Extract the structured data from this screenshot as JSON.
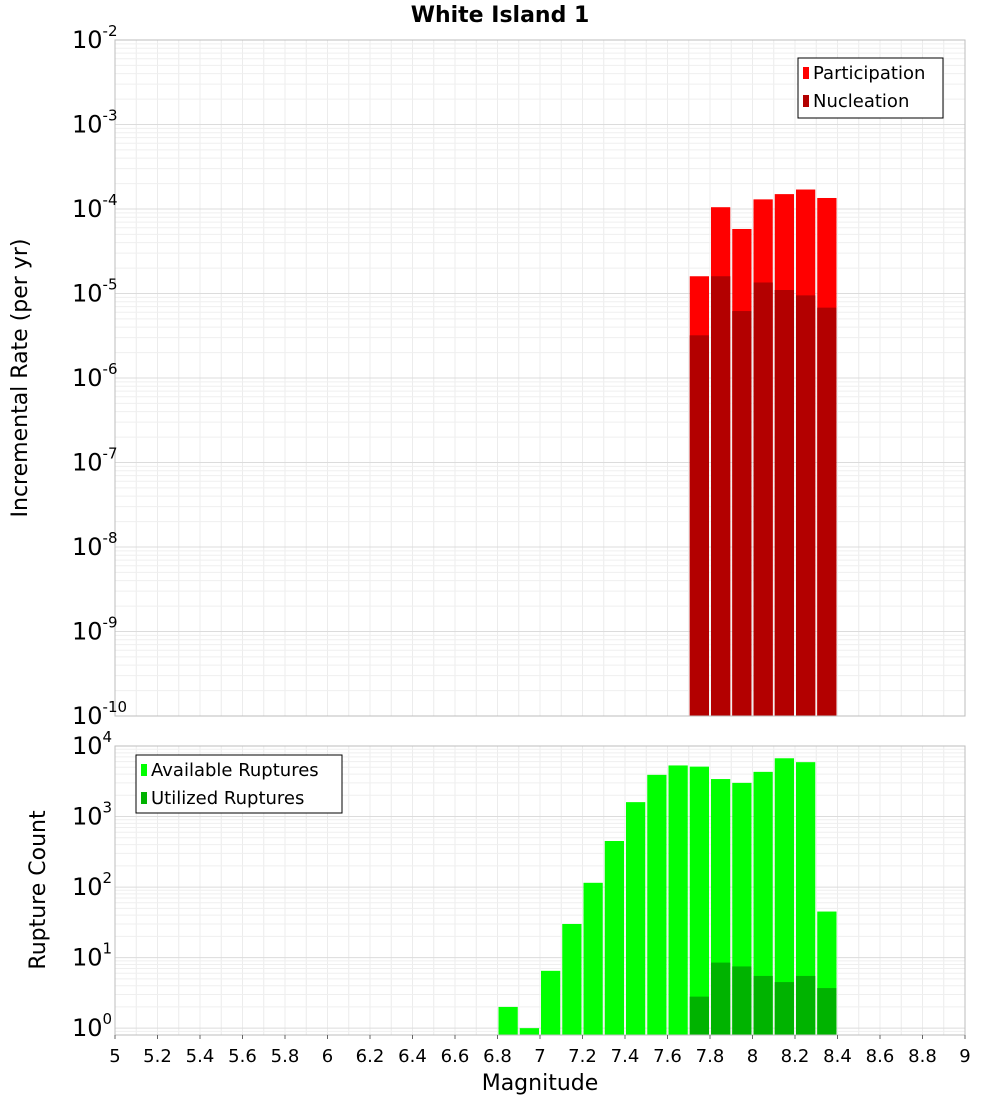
{
  "chart_data": [
    {
      "type": "bar",
      "panel": "top",
      "title": "White Island 1",
      "xlabel": "",
      "ylabel": "Incremental Rate (per yr)",
      "y_scale": "log",
      "xlim": [
        5,
        9
      ],
      "ylim": [
        1e-10,
        0.01
      ],
      "grid": true,
      "legend_position": "top-right",
      "y_ticks": [
        {
          "base": "10",
          "exp": "-10",
          "value": 1e-10
        },
        {
          "base": "10",
          "exp": "-9",
          "value": 1e-09
        },
        {
          "base": "10",
          "exp": "-8",
          "value": 1e-08
        },
        {
          "base": "10",
          "exp": "-7",
          "value": 1e-07
        },
        {
          "base": "10",
          "exp": "-6",
          "value": 1e-06
        },
        {
          "base": "10",
          "exp": "-5",
          "value": 1e-05
        },
        {
          "base": "10",
          "exp": "-4",
          "value": 0.0001
        },
        {
          "base": "10",
          "exp": "-3",
          "value": 0.001
        },
        {
          "base": "10",
          "exp": "-2",
          "value": 0.01
        }
      ],
      "bin_width": 0.1,
      "x": [
        7.75,
        7.85,
        7.95,
        8.05,
        8.15,
        8.25,
        8.35
      ],
      "series": [
        {
          "name": "Participation",
          "color": "#ff0000",
          "values": [
            1.6e-05,
            0.000105,
            5.8e-05,
            0.00013,
            0.00015,
            0.00017,
            0.000135
          ]
        },
        {
          "name": "Nucleation",
          "color": "#b30000",
          "values": [
            3.2e-06,
            1.6e-05,
            6.2e-06,
            1.35e-05,
            1.1e-05,
            9.5e-06,
            6.8e-06
          ]
        }
      ]
    },
    {
      "type": "bar",
      "panel": "bottom",
      "title": "",
      "xlabel": "Magnitude",
      "ylabel": "Rupture Count",
      "y_scale": "log",
      "xlim": [
        5,
        9
      ],
      "ylim": [
        0.8,
        10000
      ],
      "grid": true,
      "legend_position": "top-left",
      "y_ticks": [
        {
          "base": "10",
          "exp": "0",
          "value": 1
        },
        {
          "base": "10",
          "exp": "1",
          "value": 10
        },
        {
          "base": "10",
          "exp": "2",
          "value": 100
        },
        {
          "base": "10",
          "exp": "3",
          "value": 1000
        },
        {
          "base": "10",
          "exp": "4",
          "value": 10000
        }
      ],
      "x_ticks": [
        "5",
        "5.2",
        "5.4",
        "5.6",
        "5.8",
        "6",
        "6.2",
        "6.4",
        "6.6",
        "6.8",
        "7",
        "7.2",
        "7.4",
        "7.6",
        "7.8",
        "8",
        "8.2",
        "8.4",
        "8.6",
        "8.8",
        "9"
      ],
      "bin_width": 0.1,
      "series": [
        {
          "name": "Available Ruptures",
          "color": "#00ff00",
          "x": [
            6.85,
            6.95,
            7.05,
            7.15,
            7.25,
            7.35,
            7.45,
            7.55,
            7.65,
            7.75,
            7.85,
            7.95,
            8.05,
            8.15,
            8.25,
            8.35
          ],
          "values": [
            2,
            1,
            6.5,
            30,
            115,
            450,
            1600,
            3900,
            5300,
            5100,
            3400,
            3000,
            4300,
            6700,
            5900,
            45
          ]
        },
        {
          "name": "Utilized Ruptures",
          "color": "#00b300",
          "x": [
            7.75,
            7.85,
            7.95,
            8.05,
            8.15,
            8.25,
            8.35
          ],
          "values": [
            2.8,
            8.5,
            7.5,
            5.5,
            4.5,
            5.5,
            3.7
          ]
        }
      ]
    }
  ]
}
